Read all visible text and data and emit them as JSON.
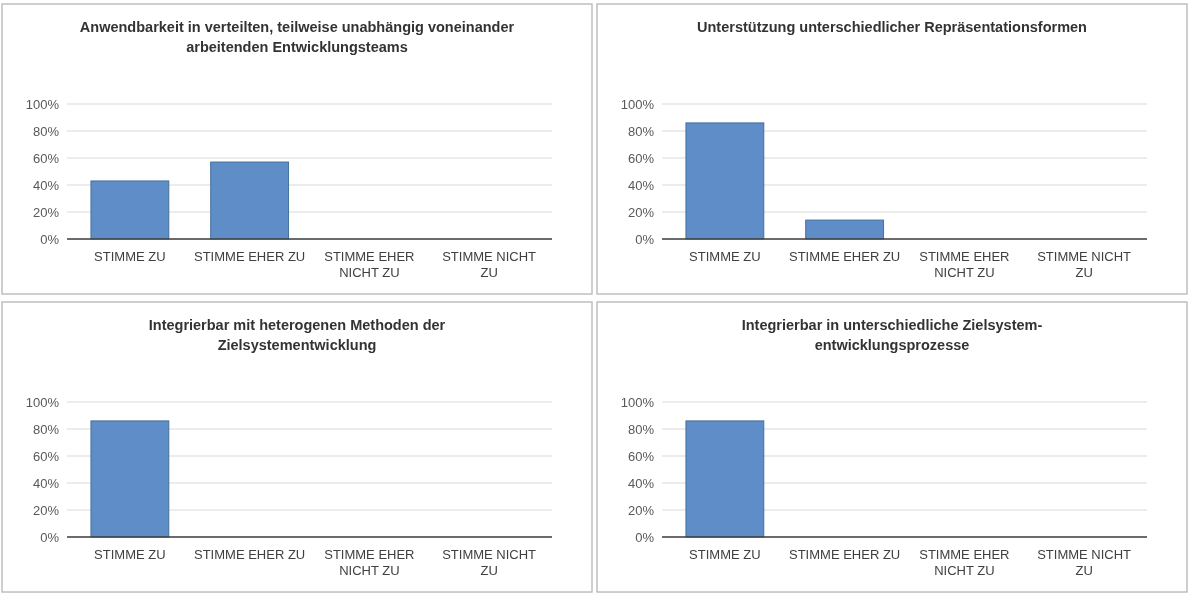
{
  "chart_data": [
    {
      "type": "bar",
      "title": "Anwendbarkeit in verteilten, teilweise unabhängig voneinander arbeitenden Entwicklungsteams",
      "categories": [
        "STIMME ZU",
        "STIMME EHER ZU",
        "STIMME EHER NICHT ZU",
        "STIMME NICHT ZU"
      ],
      "values": [
        43,
        57,
        0,
        0
      ],
      "color": "#5f8dc8",
      "ylim": [
        0,
        100
      ],
      "yticks": [
        {
          "value": 0,
          "label": "0%"
        },
        {
          "value": 20,
          "label": "20%"
        },
        {
          "value": 40,
          "label": "40%"
        },
        {
          "value": 60,
          "label": "60%"
        },
        {
          "value": 80,
          "label": "80%"
        },
        {
          "value": 100,
          "label": "100%"
        }
      ],
      "grid": "y"
    },
    {
      "type": "bar",
      "title": "Unterstützung unterschiedlicher Repräsentationsformen",
      "categories": [
        "STIMME ZU",
        "STIMME EHER ZU",
        "STIMME EHER NICHT ZU",
        "STIMME NICHT ZU"
      ],
      "values": [
        86,
        14,
        0,
        0
      ],
      "color": "#5f8dc8",
      "ylim": [
        0,
        100
      ],
      "yticks": [
        {
          "value": 0,
          "label": "0%"
        },
        {
          "value": 20,
          "label": "20%"
        },
        {
          "value": 40,
          "label": "40%"
        },
        {
          "value": 60,
          "label": "60%"
        },
        {
          "value": 80,
          "label": "80%"
        },
        {
          "value": 100,
          "label": "100%"
        }
      ],
      "grid": "y"
    },
    {
      "type": "bar",
      "title": "Integrierbar mit heterogenen Methoden der Zielsystementwicklung",
      "categories": [
        "STIMME ZU",
        "STIMME EHER ZU",
        "STIMME EHER NICHT ZU",
        "STIMME NICHT ZU"
      ],
      "values": [
        86,
        0,
        0,
        0
      ],
      "color": "#5f8dc8",
      "ylim": [
        0,
        100
      ],
      "yticks": [
        {
          "value": 0,
          "label": "0%"
        },
        {
          "value": 20,
          "label": "20%"
        },
        {
          "value": 40,
          "label": "40%"
        },
        {
          "value": 60,
          "label": "60%"
        },
        {
          "value": 80,
          "label": "80%"
        },
        {
          "value": 100,
          "label": "100%"
        }
      ],
      "grid": "y"
    },
    {
      "type": "bar",
      "title": "Integrierbar in unterschiedliche Zielsystem-entwicklungsprozesse",
      "categories": [
        "STIMME ZU",
        "STIMME EHER ZU",
        "STIMME EHER NICHT ZU",
        "STIMME NICHT ZU"
      ],
      "values": [
        86,
        0,
        0,
        0
      ],
      "color": "#5f8dc8",
      "ylim": [
        0,
        100
      ],
      "yticks": [
        {
          "value": 0,
          "label": "0%"
        },
        {
          "value": 20,
          "label": "20%"
        },
        {
          "value": 40,
          "label": "40%"
        },
        {
          "value": 60,
          "label": "60%"
        },
        {
          "value": 80,
          "label": "80%"
        },
        {
          "value": 100,
          "label": "100%"
        }
      ],
      "grid": "y"
    }
  ]
}
